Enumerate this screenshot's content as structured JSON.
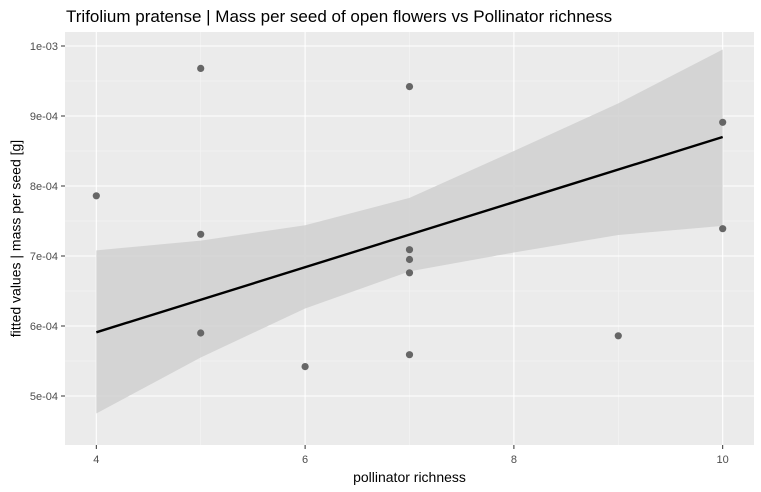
{
  "chart_data": {
    "type": "scatter",
    "title": "Trifolium pratense | Mass per seed of open flowers vs Pollinator richness",
    "xlabel": "pollinator richness",
    "ylabel": "fitted values | mass per seed [g]",
    "xlim": [
      3.7,
      10.3
    ],
    "ylim": [
      0.00043,
      0.00102
    ],
    "x_ticks": [
      4,
      6,
      8,
      10
    ],
    "x_tick_labels": [
      "4",
      "6",
      "8",
      "10"
    ],
    "y_ticks": [
      0.0005,
      0.0006,
      0.0007,
      0.0008,
      0.0009,
      0.001
    ],
    "y_tick_labels": [
      "5e-04",
      "6e-04",
      "7e-04",
      "8e-04",
      "9e-04",
      "1e-03"
    ],
    "grid": true,
    "legend": "none",
    "points": [
      {
        "x": 4,
        "y": 0.000786
      },
      {
        "x": 5,
        "y": 0.000968
      },
      {
        "x": 5,
        "y": 0.000731
      },
      {
        "x": 5,
        "y": 0.00059
      },
      {
        "x": 6,
        "y": 0.000542
      },
      {
        "x": 7,
        "y": 0.000942
      },
      {
        "x": 7,
        "y": 0.000709
      },
      {
        "x": 7,
        "y": 0.000695
      },
      {
        "x": 7,
        "y": 0.000676
      },
      {
        "x": 7,
        "y": 0.000559
      },
      {
        "x": 9,
        "y": 0.000586
      },
      {
        "x": 10,
        "y": 0.000891
      },
      {
        "x": 10,
        "y": 0.000739
      }
    ],
    "fit_line": {
      "x": [
        4,
        10
      ],
      "y": [
        0.000591,
        0.00087
      ]
    },
    "confidence_band": {
      "x": [
        4,
        5,
        6,
        7,
        8,
        9,
        10
      ],
      "upper": [
        0.000708,
        0.000722,
        0.000744,
        0.000783,
        0.00085,
        0.000918,
        0.000995
      ],
      "lower": [
        0.000475,
        0.000555,
        0.000625,
        0.000678,
        0.000705,
        0.00073,
        0.000743
      ]
    },
    "colors": {
      "panel": "#ebebeb",
      "grid_major": "#ffffff",
      "grid_minor": "#f5f5f5",
      "band": "#d0d0d0",
      "line": "#000000",
      "points": "#666666"
    }
  }
}
